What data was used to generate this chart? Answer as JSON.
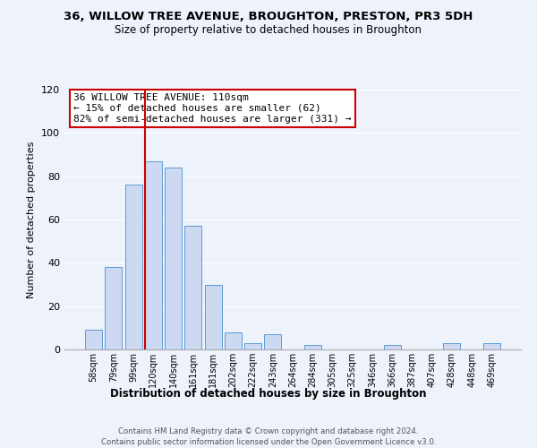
{
  "title": "36, WILLOW TREE AVENUE, BROUGHTON, PRESTON, PR3 5DH",
  "subtitle": "Size of property relative to detached houses in Broughton",
  "xlabel": "Distribution of detached houses by size in Broughton",
  "ylabel": "Number of detached properties",
  "bar_labels": [
    "58sqm",
    "79sqm",
    "99sqm",
    "120sqm",
    "140sqm",
    "161sqm",
    "181sqm",
    "202sqm",
    "222sqm",
    "243sqm",
    "264sqm",
    "284sqm",
    "305sqm",
    "325sqm",
    "346sqm",
    "366sqm",
    "387sqm",
    "407sqm",
    "428sqm",
    "448sqm",
    "469sqm"
  ],
  "bar_values": [
    9,
    38,
    76,
    87,
    84,
    57,
    30,
    8,
    3,
    7,
    0,
    2,
    0,
    0,
    0,
    2,
    0,
    0,
    3,
    0,
    3
  ],
  "bar_color": "#ccd9f0",
  "bar_edge_color": "#5b9bd5",
  "vline_color": "#cc0000",
  "annotation_text": "36 WILLOW TREE AVENUE: 110sqm\n← 15% of detached houses are smaller (62)\n82% of semi-detached houses are larger (331) →",
  "annotation_box_color": "#ffffff",
  "annotation_box_edge": "#cc0000",
  "ylim": [
    0,
    120
  ],
  "yticks": [
    0,
    20,
    40,
    60,
    80,
    100,
    120
  ],
  "footer_line1": "Contains HM Land Registry data © Crown copyright and database right 2024.",
  "footer_line2": "Contains public sector information licensed under the Open Government Licence v3.0.",
  "bg_color": "#edf2fb"
}
